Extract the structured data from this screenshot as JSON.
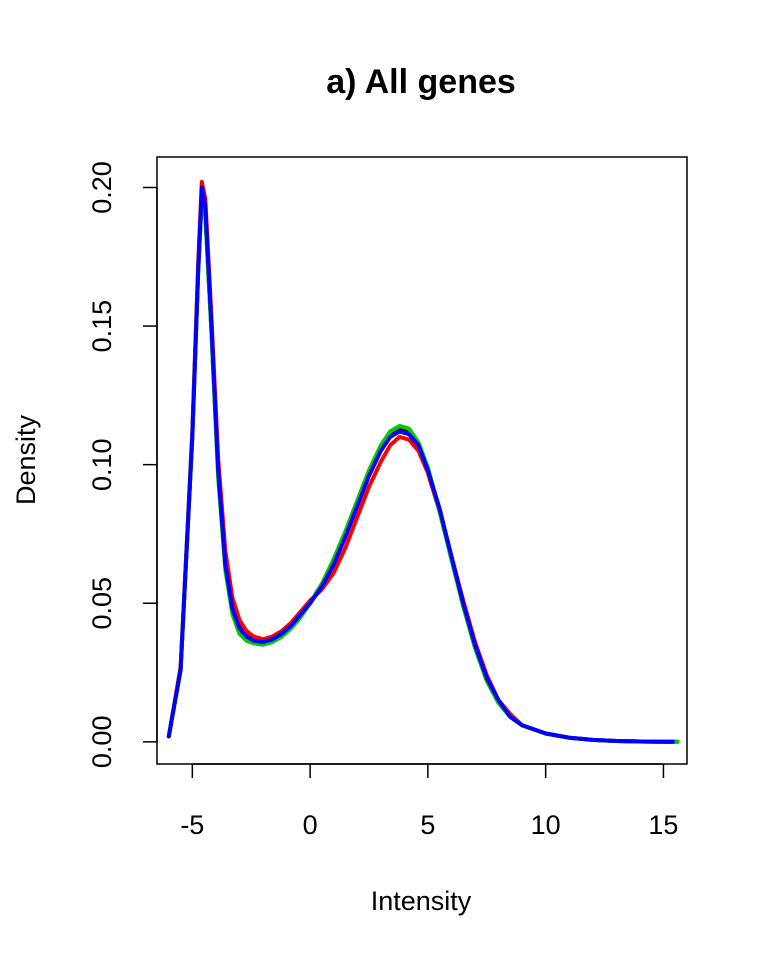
{
  "chart_data": {
    "type": "line",
    "title": "a) All genes",
    "xlabel": "Intensity",
    "ylabel": "Density",
    "xlim": [
      -6.5,
      16.0
    ],
    "ylim": [
      -0.008,
      0.211
    ],
    "x_ticks": [
      -5,
      0,
      5,
      10,
      15
    ],
    "x_tick_labels": [
      "-5",
      "0",
      "5",
      "10",
      "15"
    ],
    "y_ticks": [
      0.0,
      0.05,
      0.1,
      0.15,
      0.2
    ],
    "y_tick_labels": [
      "0.00",
      "0.05",
      "0.10",
      "0.15",
      "0.20"
    ],
    "grid": false,
    "legend": "none",
    "series": [
      {
        "color": "#000000",
        "x": [
          -6.0,
          -5.5,
          -5.0,
          -4.75,
          -4.6,
          -4.45,
          -4.2,
          -3.9,
          -3.6,
          -3.3,
          -3.0,
          -2.7,
          -2.4,
          -2.0,
          -1.6,
          -1.2,
          -0.8,
          -0.4,
          0.0,
          0.5,
          1.0,
          1.5,
          2.0,
          2.5,
          3.0,
          3.4,
          3.8,
          4.2,
          4.6,
          5.0,
          5.5,
          6.0,
          6.5,
          7.0,
          7.5,
          8.0,
          8.5,
          9.0,
          10.0,
          11.0,
          12.0,
          13.0,
          14.0,
          15.0,
          15.6
        ],
        "y": [
          0.002,
          0.026,
          0.11,
          0.17,
          0.196,
          0.19,
          0.15,
          0.097,
          0.065,
          0.049,
          0.042,
          0.039,
          0.037,
          0.0365,
          0.0375,
          0.039,
          0.042,
          0.046,
          0.05,
          0.057,
          0.065,
          0.075,
          0.086,
          0.097,
          0.106,
          0.111,
          0.113,
          0.112,
          0.107,
          0.098,
          0.083,
          0.066,
          0.049,
          0.034,
          0.022,
          0.014,
          0.009,
          0.006,
          0.003,
          0.0015,
          0.0007,
          0.0003,
          0.0001,
          0.0,
          0.0
        ]
      },
      {
        "color": "#ff0000",
        "x": [
          -6.0,
          -5.5,
          -5.0,
          -4.75,
          -4.6,
          -4.45,
          -4.2,
          -3.9,
          -3.6,
          -3.3,
          -3.0,
          -2.7,
          -2.4,
          -2.0,
          -1.6,
          -1.2,
          -0.8,
          -0.4,
          0.0,
          0.5,
          1.0,
          1.5,
          2.0,
          2.5,
          3.0,
          3.4,
          3.8,
          4.2,
          4.6,
          5.0,
          5.5,
          6.0,
          6.5,
          7.0,
          7.5,
          8.0,
          8.5,
          9.0,
          10.0,
          11.0,
          12.0,
          13.0,
          14.0,
          15.0,
          15.4
        ],
        "y": [
          0.002,
          0.027,
          0.112,
          0.173,
          0.202,
          0.196,
          0.155,
          0.102,
          0.069,
          0.052,
          0.044,
          0.04,
          0.038,
          0.037,
          0.038,
          0.04,
          0.043,
          0.047,
          0.051,
          0.055,
          0.061,
          0.07,
          0.081,
          0.092,
          0.101,
          0.107,
          0.11,
          0.109,
          0.105,
          0.097,
          0.083,
          0.067,
          0.051,
          0.036,
          0.024,
          0.015,
          0.01,
          0.006,
          0.003,
          0.0015,
          0.0007,
          0.0003,
          0.0001,
          0.0,
          0.0
        ]
      },
      {
        "color": "#00cd00",
        "x": [
          -6.0,
          -5.5,
          -5.0,
          -4.75,
          -4.6,
          -4.45,
          -4.2,
          -3.9,
          -3.6,
          -3.3,
          -3.0,
          -2.7,
          -2.4,
          -2.0,
          -1.6,
          -1.2,
          -0.8,
          -0.4,
          0.0,
          0.5,
          1.0,
          1.5,
          2.0,
          2.5,
          3.0,
          3.4,
          3.8,
          4.2,
          4.6,
          5.0,
          5.5,
          6.0,
          6.5,
          7.0,
          7.5,
          8.0,
          8.5,
          9.0,
          10.0,
          11.0,
          12.0,
          13.0,
          14.0,
          15.0,
          15.6
        ],
        "y": [
          0.002,
          0.026,
          0.11,
          0.17,
          0.197,
          0.19,
          0.149,
          0.095,
          0.062,
          0.046,
          0.039,
          0.0365,
          0.0355,
          0.035,
          0.036,
          0.038,
          0.041,
          0.045,
          0.05,
          0.057,
          0.066,
          0.076,
          0.087,
          0.098,
          0.107,
          0.112,
          0.114,
          0.113,
          0.108,
          0.099,
          0.083,
          0.066,
          0.049,
          0.034,
          0.022,
          0.014,
          0.009,
          0.006,
          0.003,
          0.0015,
          0.0007,
          0.0003,
          0.0001,
          0.0,
          0.0
        ]
      },
      {
        "color": "#0000ff",
        "x": [
          -6.0,
          -5.5,
          -5.0,
          -4.75,
          -4.6,
          -4.45,
          -4.2,
          -3.9,
          -3.6,
          -3.3,
          -3.0,
          -2.7,
          -2.4,
          -2.0,
          -1.6,
          -1.2,
          -0.8,
          -0.4,
          0.0,
          0.5,
          1.0,
          1.5,
          2.0,
          2.5,
          3.0,
          3.4,
          3.8,
          4.2,
          4.6,
          5.0,
          5.5,
          6.0,
          6.5,
          7.0,
          7.5,
          8.0,
          8.5,
          9.0,
          10.0,
          11.0,
          12.0,
          13.0,
          14.0,
          15.0,
          15.4
        ],
        "y": [
          0.002,
          0.026,
          0.11,
          0.17,
          0.2,
          0.193,
          0.152,
          0.098,
          0.064,
          0.048,
          0.041,
          0.038,
          0.0365,
          0.036,
          0.037,
          0.039,
          0.042,
          0.046,
          0.05,
          0.056,
          0.064,
          0.074,
          0.085,
          0.096,
          0.105,
          0.11,
          0.112,
          0.111,
          0.107,
          0.098,
          0.084,
          0.067,
          0.05,
          0.035,
          0.023,
          0.015,
          0.009,
          0.006,
          0.003,
          0.0015,
          0.0007,
          0.0003,
          0.0001,
          0.0,
          0.0
        ]
      }
    ]
  }
}
